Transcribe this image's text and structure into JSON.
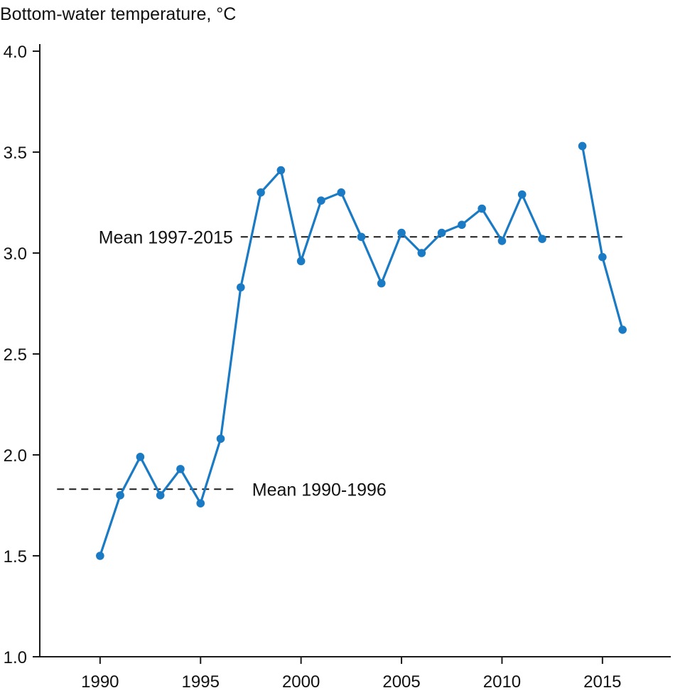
{
  "chart_data": {
    "type": "line",
    "title": "",
    "ylabel": "Bottom-water temperature, °C",
    "xlabel": "",
    "xlim": [
      1987,
      2018.4
    ],
    "ylim": [
      1.0,
      4.0
    ],
    "xticks": [
      1990,
      1995,
      2000,
      2005,
      2010,
      2015
    ],
    "yticks": [
      "1.0",
      "1.5",
      "2.0",
      "2.5",
      "3.0",
      "3.5",
      "4.0"
    ],
    "series": [
      {
        "name": "Bottom-water temperature",
        "color": "#1a7bc4",
        "segments": [
          {
            "x": [
              1990,
              1991,
              1992,
              1993,
              1994,
              1995,
              1996,
              1997,
              1998,
              1999,
              2000,
              2001,
              2002,
              2003,
              2004,
              2005,
              2006,
              2007,
              2008,
              2009,
              2010,
              2011,
              2012
            ],
            "y": [
              1.5,
              1.8,
              1.99,
              1.8,
              1.93,
              1.76,
              2.08,
              2.83,
              3.3,
              3.41,
              2.96,
              3.26,
              3.3,
              3.08,
              2.85,
              3.1,
              3.0,
              3.1,
              3.14,
              3.22,
              3.06,
              3.29,
              3.07
            ]
          },
          {
            "x": [
              2014,
              2015,
              2016
            ],
            "y": [
              3.53,
              2.98,
              2.62
            ]
          }
        ]
      }
    ],
    "annotations": [
      {
        "text": "Mean 1990-1996",
        "value": 1.83,
        "x_start": 1988,
        "x_end": 1997,
        "label_side": "right"
      },
      {
        "text": "Mean 1997-2015",
        "value": 3.08,
        "x_start": 1997,
        "x_end": 2016,
        "label_side": "left"
      }
    ]
  }
}
